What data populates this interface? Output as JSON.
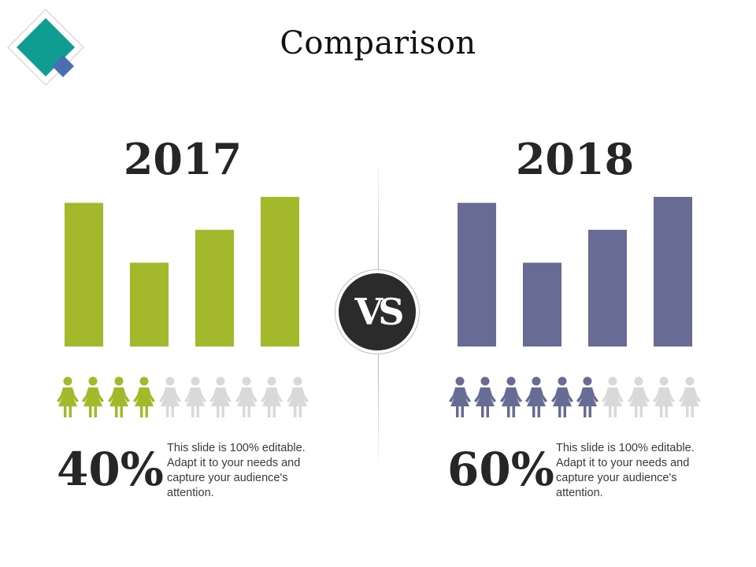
{
  "title": "Comparison",
  "vs_label": "VS",
  "colors": {
    "accent_teal": "#0f9d91",
    "accent_blue": "#4a6fb0",
    "series_2017": "#a4b82c",
    "series_2018": "#686b93",
    "inactive_person": "#d9d9d9"
  },
  "chart_data": [
    {
      "type": "bar",
      "title": "2017",
      "categories": [
        "",
        "",
        "",
        ""
      ],
      "values": [
        96,
        56,
        78,
        100
      ],
      "ylim": [
        0,
        100
      ],
      "color": "#a4b82c"
    },
    {
      "type": "bar",
      "title": "2018",
      "categories": [
        "",
        "",
        "",
        ""
      ],
      "values": [
        96,
        56,
        78,
        100
      ],
      "ylim": [
        0,
        100
      ],
      "color": "#686b93"
    }
  ],
  "panels": [
    {
      "year": "2017",
      "people_total": 10,
      "people_filled": 4,
      "percent": "40%",
      "description": "This slide is 100% editable. Adapt it to your needs and capture your audience's attention."
    },
    {
      "year": "2018",
      "people_total": 10,
      "people_filled": 6,
      "percent": "60%",
      "description": "This slide is 100% editable. Adapt it to your needs and capture your audience's attention."
    }
  ]
}
